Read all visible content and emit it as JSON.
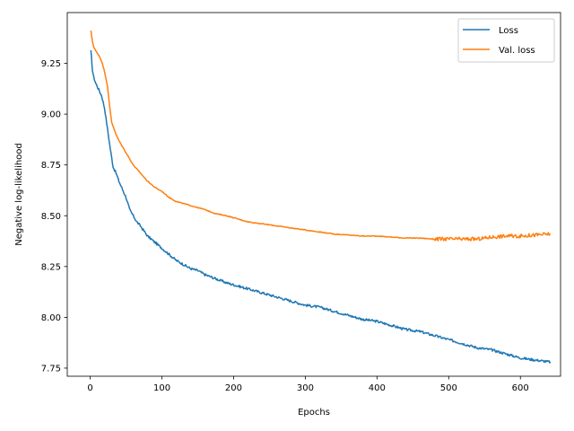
{
  "chart_data": {
    "type": "line",
    "title": "",
    "xlabel": "Epochs",
    "ylabel": "Negative log-likelihood",
    "xlim": [
      -32,
      656
    ],
    "ylim": [
      7.71,
      9.5
    ],
    "xticks": [
      0,
      100,
      200,
      300,
      400,
      500,
      600
    ],
    "xtick_labels": [
      "0",
      "100",
      "200",
      "300",
      "400",
      "500",
      "600"
    ],
    "yticks": [
      7.75,
      8.0,
      8.25,
      8.5,
      8.75,
      9.0,
      9.25
    ],
    "ytick_labels": [
      "7.75",
      "8.00",
      "8.25",
      "8.50",
      "8.75",
      "9.00",
      "9.25"
    ],
    "grid": false,
    "legend_position": "top-right",
    "series": [
      {
        "name": "Loss",
        "color": "#1f77b4",
        "x": [
          1,
          3,
          5,
          8,
          12,
          16,
          20,
          24,
          28,
          32,
          36,
          40,
          45,
          50,
          55,
          60,
          65,
          70,
          80,
          90,
          100,
          110,
          120,
          130,
          140,
          150,
          160,
          175,
          190,
          200,
          220,
          240,
          260,
          280,
          300,
          320,
          340,
          360,
          380,
          400,
          420,
          440,
          460,
          480,
          500,
          520,
          540,
          560,
          580,
          600,
          620,
          642
        ],
        "y": [
          9.31,
          9.22,
          9.18,
          9.15,
          9.12,
          9.09,
          9.03,
          8.93,
          8.83,
          8.74,
          8.71,
          8.67,
          8.63,
          8.59,
          8.53,
          8.5,
          8.47,
          8.45,
          8.4,
          8.37,
          8.34,
          8.31,
          8.28,
          8.26,
          8.24,
          8.23,
          8.21,
          8.19,
          8.17,
          8.16,
          8.14,
          8.12,
          8.1,
          8.08,
          8.06,
          8.05,
          8.03,
          8.01,
          7.99,
          7.98,
          7.96,
          7.94,
          7.93,
          7.91,
          7.89,
          7.87,
          7.85,
          7.84,
          7.82,
          7.8,
          7.79,
          7.78
        ]
      },
      {
        "name": "Val. loss",
        "color": "#ff7f0e",
        "x": [
          1,
          3,
          5,
          8,
          12,
          16,
          20,
          24,
          27,
          30,
          33,
          36,
          40,
          45,
          50,
          55,
          60,
          65,
          70,
          80,
          90,
          100,
          110,
          120,
          130,
          140,
          150,
          160,
          175,
          190,
          200,
          220,
          240,
          260,
          280,
          300,
          320,
          340,
          360,
          380,
          400,
          420,
          440,
          460,
          480,
          500,
          520,
          540,
          560,
          580,
          600,
          620,
          642
        ],
        "y": [
          9.41,
          9.36,
          9.33,
          9.31,
          9.29,
          9.26,
          9.21,
          9.14,
          9.04,
          8.96,
          8.93,
          8.9,
          8.87,
          8.84,
          8.81,
          8.78,
          8.75,
          8.73,
          8.71,
          8.67,
          8.64,
          8.62,
          8.59,
          8.57,
          8.56,
          8.55,
          8.54,
          8.53,
          8.51,
          8.5,
          8.49,
          8.47,
          8.46,
          8.45,
          8.44,
          8.43,
          8.42,
          8.41,
          8.405,
          8.4,
          8.4,
          8.395,
          8.39,
          8.39,
          8.385,
          8.385,
          8.385,
          8.385,
          8.395,
          8.4,
          8.4,
          8.405,
          8.41
        ]
      }
    ]
  }
}
